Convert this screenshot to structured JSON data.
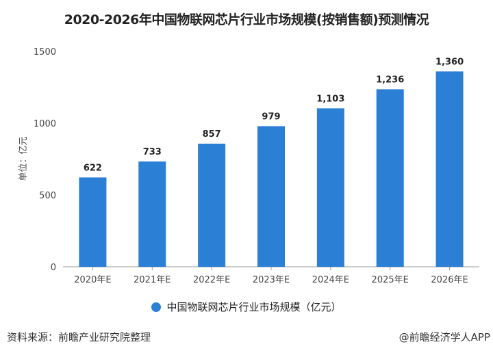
{
  "chart_data": {
    "type": "bar",
    "title": "2020-2026年中国物联网芯片行业市场规模(按销售额)预测情况",
    "ylabel": "单位：亿元",
    "xlabel": "",
    "categories": [
      "2020年E",
      "2021年E",
      "2022年E",
      "2023年E",
      "2024年E",
      "2025年E",
      "2026年E"
    ],
    "values": [
      622,
      733,
      857,
      979,
      1103,
      1236,
      1360
    ],
    "data_labels": [
      "622",
      "733",
      "857",
      "979",
      "1,103",
      "1,236",
      "1,360"
    ],
    "ylim": [
      0,
      1500
    ],
    "yticks": [
      "0",
      "500",
      "1000",
      "1500"
    ],
    "grid": false,
    "legend": {
      "position": "bottom",
      "entries": [
        "中国物联网芯片行业市场规模（亿元）"
      ]
    },
    "color": "#2b7fd4"
  },
  "source": "资料来源：前瞻产业研究院整理",
  "credit": "@前瞻经济学人APP",
  "watermark": "前瞻产业研究院"
}
